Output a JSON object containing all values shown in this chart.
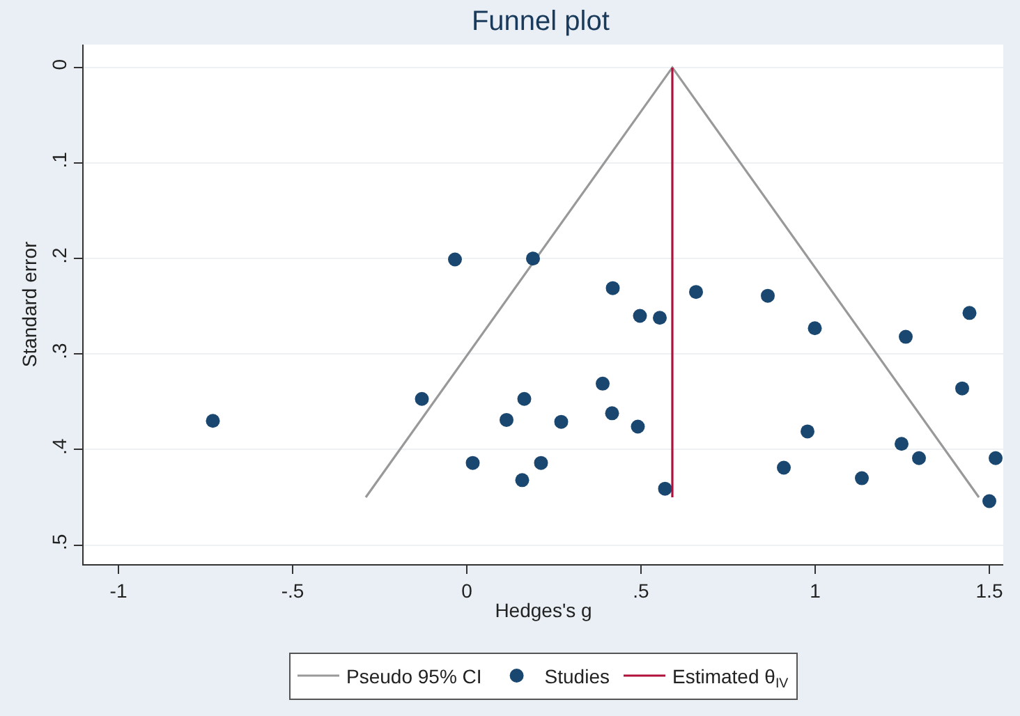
{
  "chart_data": {
    "type": "scatter",
    "title": "Funnel plot",
    "xlabel": "Hedges's g",
    "ylabel": "Standard error",
    "xlim": [
      -1.1,
      1.54
    ],
    "xticks": [
      -1,
      {
        "value": -0.5,
        "label": "-.5"
      },
      0,
      {
        "value": 0.5,
        "label": ".5"
      },
      1,
      1.5
    ],
    "ylim": [
      0.52,
      -0.024
    ],
    "yticks": [
      0,
      {
        "value": 0.1,
        "label": ".1"
      },
      {
        "value": 0.2,
        "label": ".2"
      },
      {
        "value": 0.3,
        "label": ".3"
      },
      {
        "value": 0.4,
        "label": ".4"
      },
      {
        "value": 0.5,
        "label": ".5"
      }
    ],
    "grid": "y",
    "legend": "bottom",
    "series": [
      {
        "name": "Pseudo 95% CI",
        "type": "line",
        "color": "#999999",
        "marker": "none",
        "x": [
          -0.29,
          0.59,
          1.47
        ],
        "values": [
          0.45,
          0,
          0.45
        ]
      },
      {
        "name": "Studies",
        "color": "#1a476f",
        "marker": "circle",
        "x": [
          -0.034,
          0.19,
          -0.129,
          -0.729,
          0.165,
          0.114,
          0.271,
          0.017,
          0.213,
          0.159,
          0.419,
          0.497,
          0.554,
          0.658,
          0.864,
          0.999,
          1.26,
          1.443,
          1.422,
          0.39,
          0.417,
          0.491,
          0.569,
          0.978,
          0.91,
          1.134,
          1.248,
          1.298,
          1.518,
          1.5
        ],
        "values": [
          0.201,
          0.2,
          0.347,
          0.37,
          0.347,
          0.369,
          0.371,
          0.414,
          0.414,
          0.432,
          0.231,
          0.26,
          0.262,
          0.235,
          0.239,
          0.273,
          0.282,
          0.257,
          0.336,
          0.331,
          0.362,
          0.376,
          0.441,
          0.381,
          0.419,
          0.43,
          0.394,
          0.409,
          0.409,
          0.454
        ]
      },
      {
        "name": "Estimated θ$_{IV}$",
        "type": "line",
        "color": "#b0103a",
        "marker": "none",
        "x": [
          0.59,
          0.59
        ],
        "values": [
          0,
          0.45
        ]
      }
    ]
  }
}
